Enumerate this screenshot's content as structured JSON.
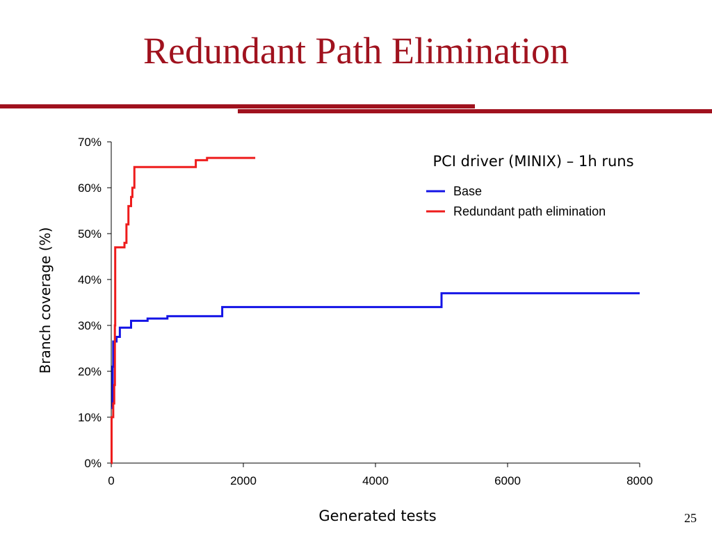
{
  "slide": {
    "title": "Redundant Path Elimination",
    "page_number": "25",
    "accent_color": "#a0121e"
  },
  "chart_data": {
    "type": "line",
    "title": "PCI driver (MINIX) – 1h runs",
    "xlabel": "Generated tests",
    "ylabel": "Branch coverage (%)",
    "xlim": [
      0,
      8000
    ],
    "ylim": [
      0,
      70
    ],
    "x_ticks": [
      0,
      2000,
      4000,
      6000,
      8000
    ],
    "x_tick_labels": [
      "0",
      "2000",
      "4000",
      "6000",
      "8000"
    ],
    "y_ticks": [
      0,
      10,
      20,
      30,
      40,
      50,
      60,
      70
    ],
    "y_tick_labels": [
      "0%",
      "10%",
      "20%",
      "30%",
      "40%",
      "50%",
      "60%",
      "70%"
    ],
    "grid": false,
    "legend": "top-right",
    "step": true,
    "series": [
      {
        "name": "Base",
        "color": "#1414e6",
        "points": [
          [
            0,
            12
          ],
          [
            20,
            21
          ],
          [
            30,
            26.5
          ],
          [
            80,
            27.5
          ],
          [
            130,
            29.5
          ],
          [
            300,
            31
          ],
          [
            550,
            31.5
          ],
          [
            850,
            32
          ],
          [
            1680,
            34
          ],
          [
            5000,
            37
          ],
          [
            8000,
            37
          ]
        ]
      },
      {
        "name": "Redundant path elimination",
        "color": "#ee1c1c",
        "points": [
          [
            0,
            0
          ],
          [
            5,
            10
          ],
          [
            30,
            13
          ],
          [
            45,
            17
          ],
          [
            55,
            30
          ],
          [
            60,
            47
          ],
          [
            200,
            48
          ],
          [
            230,
            52
          ],
          [
            260,
            56
          ],
          [
            300,
            58
          ],
          [
            320,
            60
          ],
          [
            350,
            64.5
          ],
          [
            800,
            64.5
          ],
          [
            1280,
            66
          ],
          [
            1450,
            66.5
          ],
          [
            2180,
            66.5
          ]
        ]
      }
    ]
  }
}
